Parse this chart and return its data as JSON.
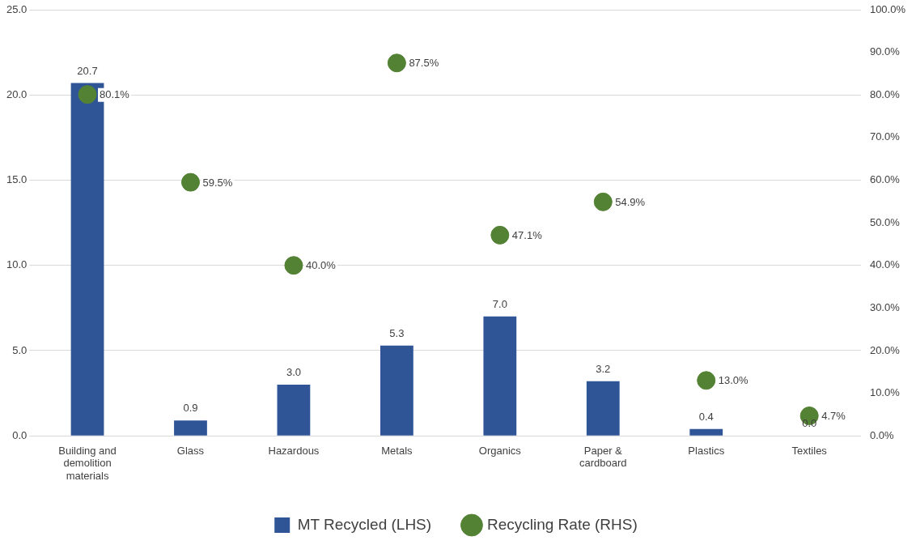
{
  "chart_data": {
    "type": "bar",
    "categories": [
      "Building and demolition materials",
      "Glass",
      "Hazardous",
      "Metals",
      "Organics",
      "Paper & cardboard",
      "Plastics",
      "Textiles"
    ],
    "series": [
      {
        "name": "MT Recycled (LHS)",
        "color": "#2f5597",
        "values": [
          20.7,
          0.9,
          3.0,
          5.3,
          7.0,
          3.2,
          0.4,
          0.0
        ],
        "value_labels": [
          "20.7",
          "0.9",
          "3.0",
          "5.3",
          "7.0",
          "3.2",
          "0.4",
          "0.0"
        ]
      },
      {
        "name": "Recycling Rate (RHS)",
        "type": "scatter",
        "axis": "y2",
        "color": "#548235",
        "marker": "circle",
        "values": [
          80.1,
          59.5,
          40.0,
          87.5,
          47.1,
          54.9,
          13.0,
          4.7
        ],
        "value_labels": [
          "80.1%",
          "59.5%",
          "40.0%",
          "87.5%",
          "47.1%",
          "54.9%",
          "13.0%",
          "4.7%"
        ]
      }
    ],
    "ylim": [
      0,
      25
    ],
    "yticks": [
      {
        "value": 0,
        "label": "0.0"
      },
      {
        "value": 5,
        "label": "5.0"
      },
      {
        "value": 10,
        "label": "10.0"
      },
      {
        "value": 15,
        "label": "15.0"
      },
      {
        "value": 20,
        "label": "20.0"
      },
      {
        "value": 25,
        "label": "25.0"
      }
    ],
    "y2lim": [
      0,
      100
    ],
    "y2ticks": [
      {
        "value": 0,
        "label": "0.0%"
      },
      {
        "value": 10,
        "label": "10.0%"
      },
      {
        "value": 20,
        "label": "20.0%"
      },
      {
        "value": 30,
        "label": "30.0%"
      },
      {
        "value": 40,
        "label": "40.0%"
      },
      {
        "value": 50,
        "label": "50.0%"
      },
      {
        "value": 60,
        "label": "60.0%"
      },
      {
        "value": 70,
        "label": "70.0%"
      },
      {
        "value": 80,
        "label": "80.0%"
      },
      {
        "value": 90,
        "label": "90.0%"
      },
      {
        "value": 100,
        "label": "100.0%"
      }
    ],
    "grid": "y",
    "legend": "bottom"
  }
}
